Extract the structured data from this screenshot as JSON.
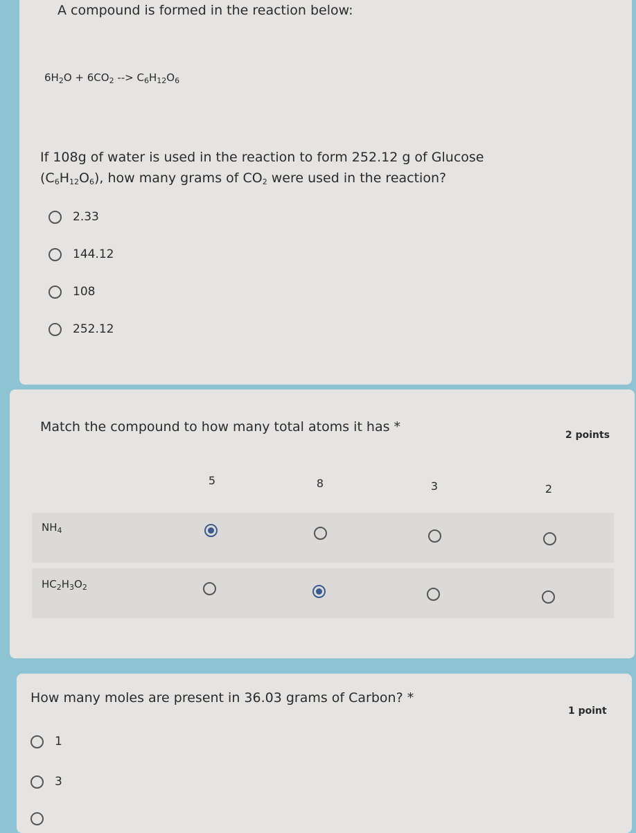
{
  "q1": {
    "intro": "A compound is formed in the reaction below:",
    "equation": [
      [
        "6H",
        "2"
      ],
      [
        "O + 6CO",
        "2"
      ],
      [
        " --> C",
        "6"
      ],
      [
        "H",
        "12"
      ],
      [
        "O",
        "6"
      ]
    ],
    "question_line1": "If 108g of water is used in the reaction to form 252.12 g of Glucose",
    "question_line2": [
      [
        "(C",
        "6"
      ],
      [
        "H",
        "12"
      ],
      [
        "O",
        "6"
      ],
      [
        "), how many grams of  CO",
        "2"
      ],
      [
        " were used in the reaction?",
        ""
      ]
    ],
    "options": [
      "2.33",
      "144.12",
      "108",
      "252.12"
    ]
  },
  "q2": {
    "title": "Match the compound to how many total atoms it has *",
    "points": "2 points",
    "columns": [
      "5",
      "8",
      "3",
      "2"
    ],
    "rows": [
      {
        "label": [
          [
            "NH",
            "4"
          ]
        ],
        "selected": 0
      },
      {
        "label": [
          [
            "HC",
            "2"
          ],
          [
            "H",
            "3"
          ],
          [
            "O",
            "2"
          ]
        ],
        "selected": 1
      }
    ]
  },
  "q3": {
    "title": "How many moles are present in 36.03 grams of Carbon? *",
    "points": "1 point",
    "options": [
      "1",
      "3"
    ]
  },
  "colors": {
    "background": "#8ec3d3",
    "card": "#e6e4e2",
    "radio_selected": "#3b5a8f"
  }
}
